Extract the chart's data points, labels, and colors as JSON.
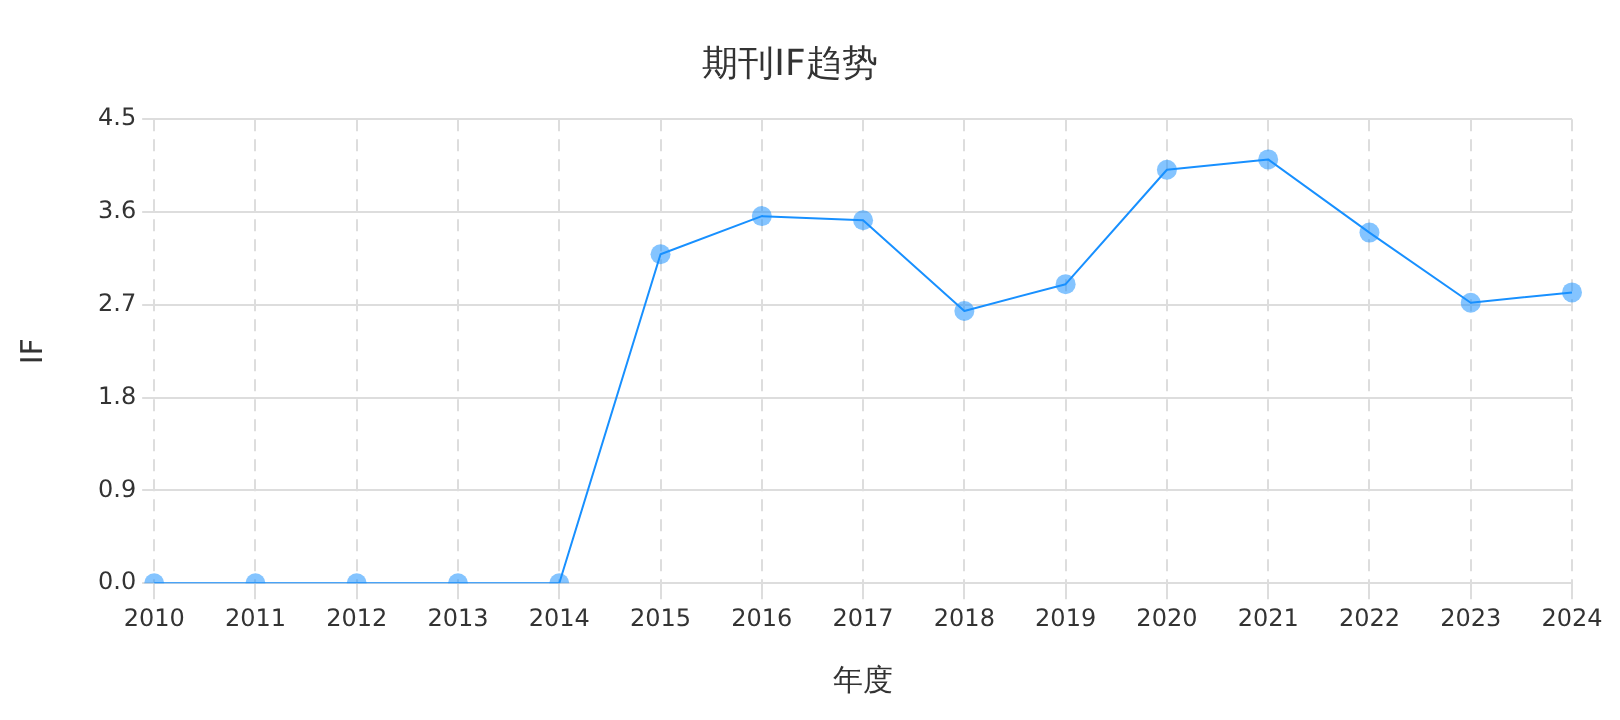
{
  "chart_data": {
    "type": "line",
    "title": "期刊IF趋势",
    "xlabel": "年度",
    "ylabel": "IF",
    "categories": [
      "2010",
      "2011",
      "2012",
      "2013",
      "2014",
      "2015",
      "2016",
      "2017",
      "2018",
      "2019",
      "2020",
      "2021",
      "2022",
      "2023",
      "2024"
    ],
    "series": [
      {
        "color": "#1890ff",
        "values": [
          0,
          0,
          0,
          0,
          0,
          3.19,
          3.56,
          3.52,
          2.64,
          2.9,
          4.01,
          4.11,
          3.4,
          2.72,
          2.82
        ]
      }
    ],
    "ylim": [
      0,
      4.5
    ],
    "yticks": [
      {
        "value": 0,
        "label": "0.0"
      },
      0.9,
      1.8,
      2.7,
      3.6,
      4.5
    ],
    "grid": true,
    "marker": "circle",
    "line_style": "solid"
  }
}
